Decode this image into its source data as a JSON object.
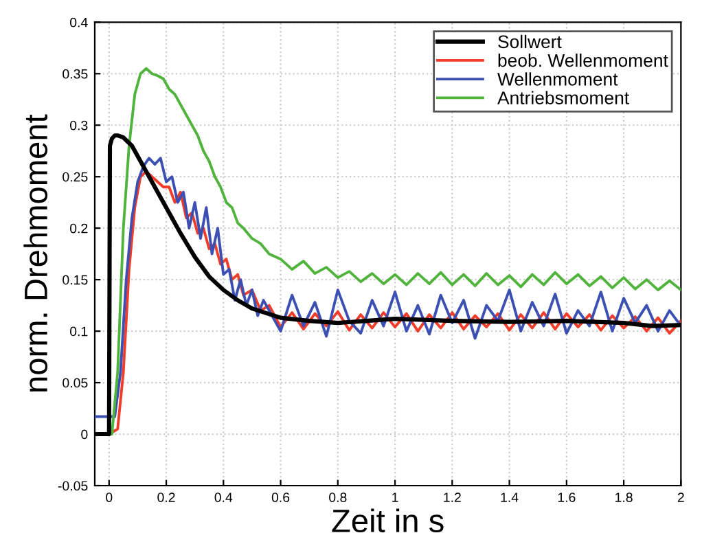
{
  "chart_data": {
    "type": "line",
    "xlabel": "Zeit in s",
    "ylabel": "norm. Drehmoment",
    "xlim": [
      -0.05,
      2
    ],
    "ylim": [
      -0.05,
      0.4
    ],
    "xticks": [
      0,
      0.2,
      0.4,
      0.6,
      0.8,
      1,
      1.2,
      1.4,
      1.6,
      1.8,
      2
    ],
    "yticks": [
      -0.05,
      0,
      0.05,
      0.1,
      0.15,
      0.2,
      0.25,
      0.3,
      0.35,
      0.4
    ],
    "grid": true,
    "legend": "top right",
    "line_style": "solid",
    "marker": "none",
    "series": [
      {
        "name": "Sollwert",
        "color": "#000000",
        "x": [
          -0.05,
          0,
          0.003,
          0.01,
          0.02,
          0.03,
          0.05,
          0.08,
          0.1,
          0.15,
          0.2,
          0.25,
          0.3,
          0.35,
          0.4,
          0.45,
          0.5,
          0.6,
          0.7,
          0.8,
          0.9,
          1.0,
          1.2,
          1.4,
          1.6,
          1.8,
          1.9,
          2.0
        ],
        "values": [
          0,
          0,
          0.28,
          0.287,
          0.29,
          0.29,
          0.288,
          0.28,
          0.27,
          0.245,
          0.22,
          0.195,
          0.172,
          0.153,
          0.14,
          0.13,
          0.122,
          0.113,
          0.11,
          0.108,
          0.11,
          0.112,
          0.11,
          0.109,
          0.11,
          0.108,
          0.105,
          0.106
        ]
      },
      {
        "name": "beob. Wellenmoment",
        "color": "#f03c28",
        "x": [
          -0.05,
          0,
          0.03,
          0.05,
          0.07,
          0.09,
          0.11,
          0.13,
          0.15,
          0.17,
          0.19,
          0.21,
          0.23,
          0.25,
          0.27,
          0.29,
          0.31,
          0.33,
          0.35,
          0.37,
          0.39,
          0.41,
          0.43,
          0.45,
          0.47,
          0.5,
          0.53,
          0.56,
          0.6,
          0.64,
          0.68,
          0.72,
          0.76,
          0.8,
          0.84,
          0.88,
          0.92,
          0.96,
          1.0,
          1.04,
          1.08,
          1.12,
          1.16,
          1.2,
          1.24,
          1.28,
          1.32,
          1.36,
          1.4,
          1.44,
          1.48,
          1.52,
          1.56,
          1.6,
          1.64,
          1.68,
          1.72,
          1.76,
          1.8,
          1.84,
          1.88,
          1.92,
          1.96,
          2.0
        ],
        "values": [
          0,
          0,
          0.005,
          0.06,
          0.16,
          0.22,
          0.25,
          0.255,
          0.25,
          0.245,
          0.24,
          0.24,
          0.225,
          0.235,
          0.21,
          0.215,
          0.195,
          0.2,
          0.18,
          0.185,
          0.165,
          0.17,
          0.15,
          0.155,
          0.135,
          0.14,
          0.12,
          0.125,
          0.104,
          0.118,
          0.102,
          0.117,
          0.105,
          0.119,
          0.101,
          0.116,
          0.103,
          0.118,
          0.104,
          0.117,
          0.1,
          0.116,
          0.103,
          0.118,
          0.102,
          0.115,
          0.104,
          0.117,
          0.101,
          0.116,
          0.103,
          0.118,
          0.102,
          0.117,
          0.104,
          0.116,
          0.101,
          0.115,
          0.103,
          0.114,
          0.1,
          0.113,
          0.098,
          0.11
        ]
      },
      {
        "name": "Wellenmoment",
        "color": "#3c50b4",
        "x": [
          -0.05,
          0.02,
          0.04,
          0.06,
          0.08,
          0.1,
          0.12,
          0.14,
          0.16,
          0.18,
          0.2,
          0.22,
          0.24,
          0.26,
          0.28,
          0.3,
          0.32,
          0.34,
          0.36,
          0.38,
          0.4,
          0.42,
          0.44,
          0.46,
          0.48,
          0.5,
          0.52,
          0.54,
          0.56,
          0.6,
          0.64,
          0.68,
          0.72,
          0.76,
          0.8,
          0.84,
          0.88,
          0.92,
          0.96,
          1.0,
          1.04,
          1.08,
          1.12,
          1.16,
          1.2,
          1.24,
          1.28,
          1.32,
          1.36,
          1.4,
          1.44,
          1.48,
          1.52,
          1.56,
          1.6,
          1.64,
          1.68,
          1.72,
          1.76,
          1.8,
          1.84,
          1.88,
          1.92,
          1.96,
          2.0
        ],
        "values": [
          0.017,
          0.017,
          0.06,
          0.15,
          0.21,
          0.245,
          0.26,
          0.268,
          0.262,
          0.268,
          0.245,
          0.25,
          0.225,
          0.235,
          0.2,
          0.225,
          0.19,
          0.22,
          0.175,
          0.2,
          0.155,
          0.16,
          0.13,
          0.15,
          0.125,
          0.14,
          0.115,
          0.13,
          0.12,
          0.1,
          0.135,
          0.105,
          0.128,
          0.095,
          0.14,
          0.11,
          0.098,
          0.13,
          0.105,
          0.138,
          0.1,
          0.125,
          0.097,
          0.135,
          0.108,
          0.13,
          0.093,
          0.125,
          0.11,
          0.14,
          0.1,
          0.128,
          0.105,
          0.136,
          0.098,
          0.12,
          0.105,
          0.138,
          0.1,
          0.132,
          0.108,
          0.125,
          0.1,
          0.12,
          0.105
        ]
      },
      {
        "name": "Antriebsmoment",
        "color": "#50b43c",
        "x": [
          -0.05,
          0.01,
          0.03,
          0.05,
          0.07,
          0.09,
          0.11,
          0.13,
          0.15,
          0.17,
          0.19,
          0.21,
          0.23,
          0.25,
          0.27,
          0.29,
          0.31,
          0.33,
          0.35,
          0.37,
          0.39,
          0.41,
          0.43,
          0.45,
          0.47,
          0.5,
          0.53,
          0.56,
          0.6,
          0.64,
          0.68,
          0.72,
          0.76,
          0.8,
          0.84,
          0.88,
          0.92,
          0.96,
          1.0,
          1.04,
          1.08,
          1.12,
          1.16,
          1.2,
          1.24,
          1.28,
          1.32,
          1.36,
          1.4,
          1.44,
          1.48,
          1.52,
          1.56,
          1.6,
          1.64,
          1.68,
          1.72,
          1.76,
          1.8,
          1.84,
          1.88,
          1.92,
          1.96,
          2.0
        ],
        "values": [
          0,
          0,
          0.06,
          0.2,
          0.28,
          0.33,
          0.35,
          0.355,
          0.35,
          0.348,
          0.345,
          0.335,
          0.33,
          0.32,
          0.31,
          0.3,
          0.29,
          0.275,
          0.265,
          0.25,
          0.24,
          0.225,
          0.22,
          0.205,
          0.2,
          0.19,
          0.185,
          0.175,
          0.17,
          0.16,
          0.168,
          0.156,
          0.162,
          0.152,
          0.158,
          0.148,
          0.156,
          0.146,
          0.155,
          0.145,
          0.156,
          0.146,
          0.157,
          0.145,
          0.155,
          0.144,
          0.156,
          0.145,
          0.154,
          0.143,
          0.155,
          0.145,
          0.157,
          0.146,
          0.155,
          0.144,
          0.153,
          0.142,
          0.152,
          0.141,
          0.15,
          0.14,
          0.149,
          0.14
        ]
      }
    ]
  }
}
